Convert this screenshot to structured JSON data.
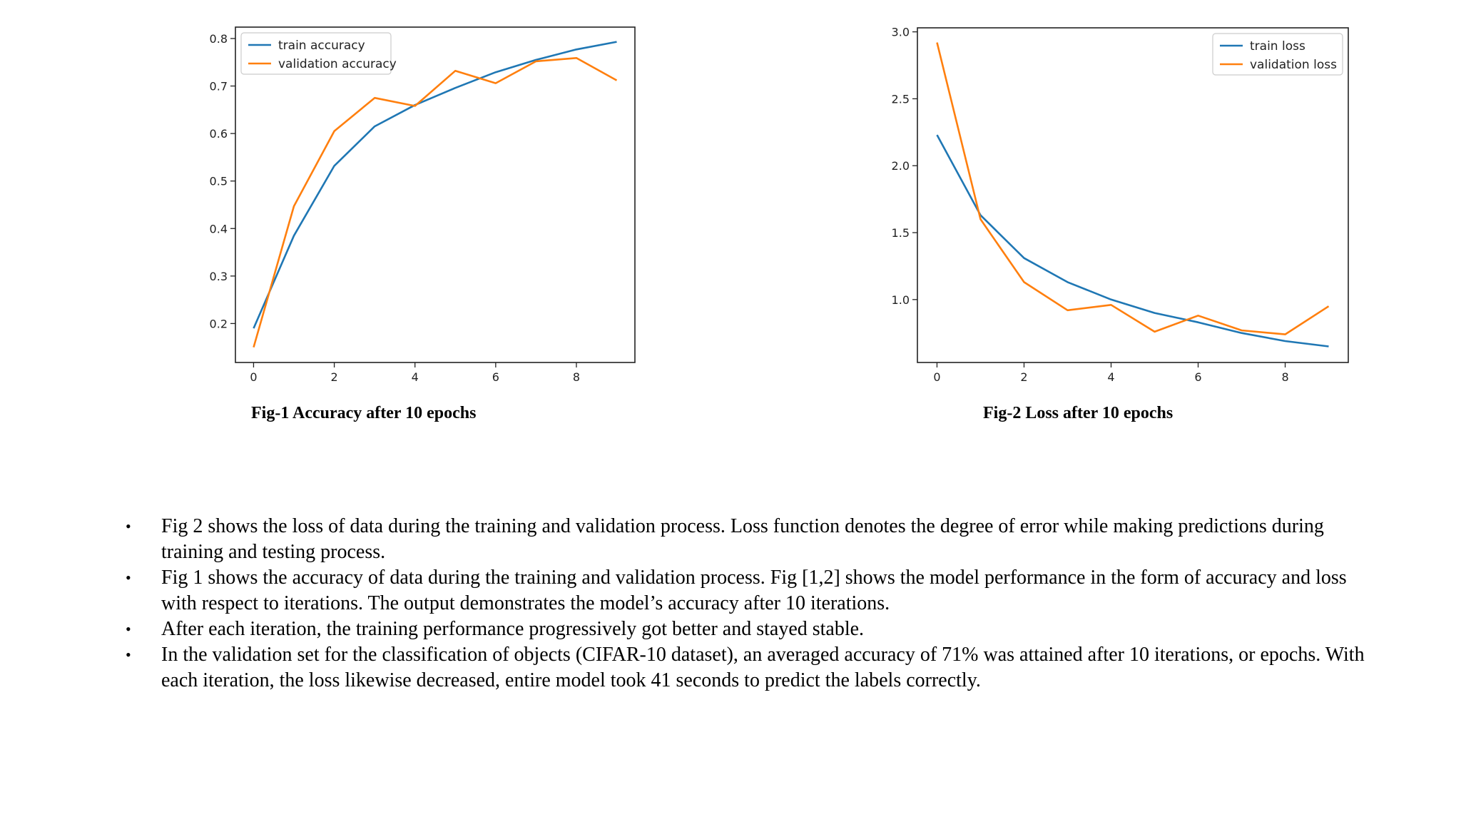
{
  "chart_data": [
    {
      "type": "line",
      "x": [
        0,
        1,
        2,
        3,
        4,
        5,
        6,
        7,
        8,
        9
      ],
      "series": [
        {
          "name": "train accuracy",
          "color": "#1f77b4",
          "values": [
            0.19,
            0.385,
            0.532,
            0.615,
            0.66,
            0.696,
            0.729,
            0.755,
            0.777,
            0.793
          ]
        },
        {
          "name": "validation accuracy",
          "color": "#ff7f0e",
          "values": [
            0.15,
            0.447,
            0.605,
            0.675,
            0.658,
            0.732,
            0.706,
            0.752,
            0.759,
            0.712
          ]
        }
      ],
      "xticks": [
        0,
        2,
        4,
        6,
        8
      ],
      "yticks": [
        0.2,
        0.3,
        0.4,
        0.5,
        0.6,
        0.7,
        0.8
      ],
      "ytick_labels": [
        "0.2",
        "0.3",
        "0.4",
        "0.5",
        "0.6",
        "0.7",
        "0.8"
      ],
      "xlim": [
        -0.45,
        9.45
      ],
      "ylim": [
        0.118,
        0.824
      ],
      "legend_position": "upper-left",
      "caption": "Fig-1 Accuracy after 10 epochs"
    },
    {
      "type": "line",
      "x": [
        0,
        1,
        2,
        3,
        4,
        5,
        6,
        7,
        8,
        9
      ],
      "series": [
        {
          "name": "train loss",
          "color": "#1f77b4",
          "values": [
            2.23,
            1.63,
            1.31,
            1.13,
            1.0,
            0.9,
            0.83,
            0.75,
            0.69,
            0.65
          ]
        },
        {
          "name": "validation loss",
          "color": "#ff7f0e",
          "values": [
            2.92,
            1.6,
            1.13,
            0.92,
            0.96,
            0.76,
            0.88,
            0.77,
            0.74,
            0.95
          ]
        }
      ],
      "xticks": [
        0,
        2,
        4,
        6,
        8
      ],
      "yticks": [
        1.0,
        1.5,
        2.0,
        2.5,
        3.0
      ],
      "ytick_labels": [
        "1.0",
        "1.5",
        "2.0",
        "2.5",
        "3.0"
      ],
      "xlim": [
        -0.45,
        9.45
      ],
      "ylim": [
        0.53,
        3.03
      ],
      "legend_position": "upper-right",
      "caption": "Fig-2 Loss after 10 epochs"
    }
  ],
  "bullets": [
    "Fig 2 shows the loss of data during the training and validation process. Loss function denotes the degree of error while making predictions during training and testing process.",
    "Fig 1 shows the accuracy of data during the training and validation process. Fig [1,2] shows the model performance in the form of accuracy and loss with respect to iterations. The output demonstrates the model’s accuracy after 10 iterations.",
    "After each iteration, the training performance progressively got better and stayed stable.",
    "In the validation set for the classification of objects (CIFAR-10 dataset), an averaged accuracy of 71% was attained after 10 iterations, or epochs. With each iteration, the loss likewise decreased, entire model took 41 seconds to predict the labels correctly."
  ],
  "bullet_symbol": "•"
}
